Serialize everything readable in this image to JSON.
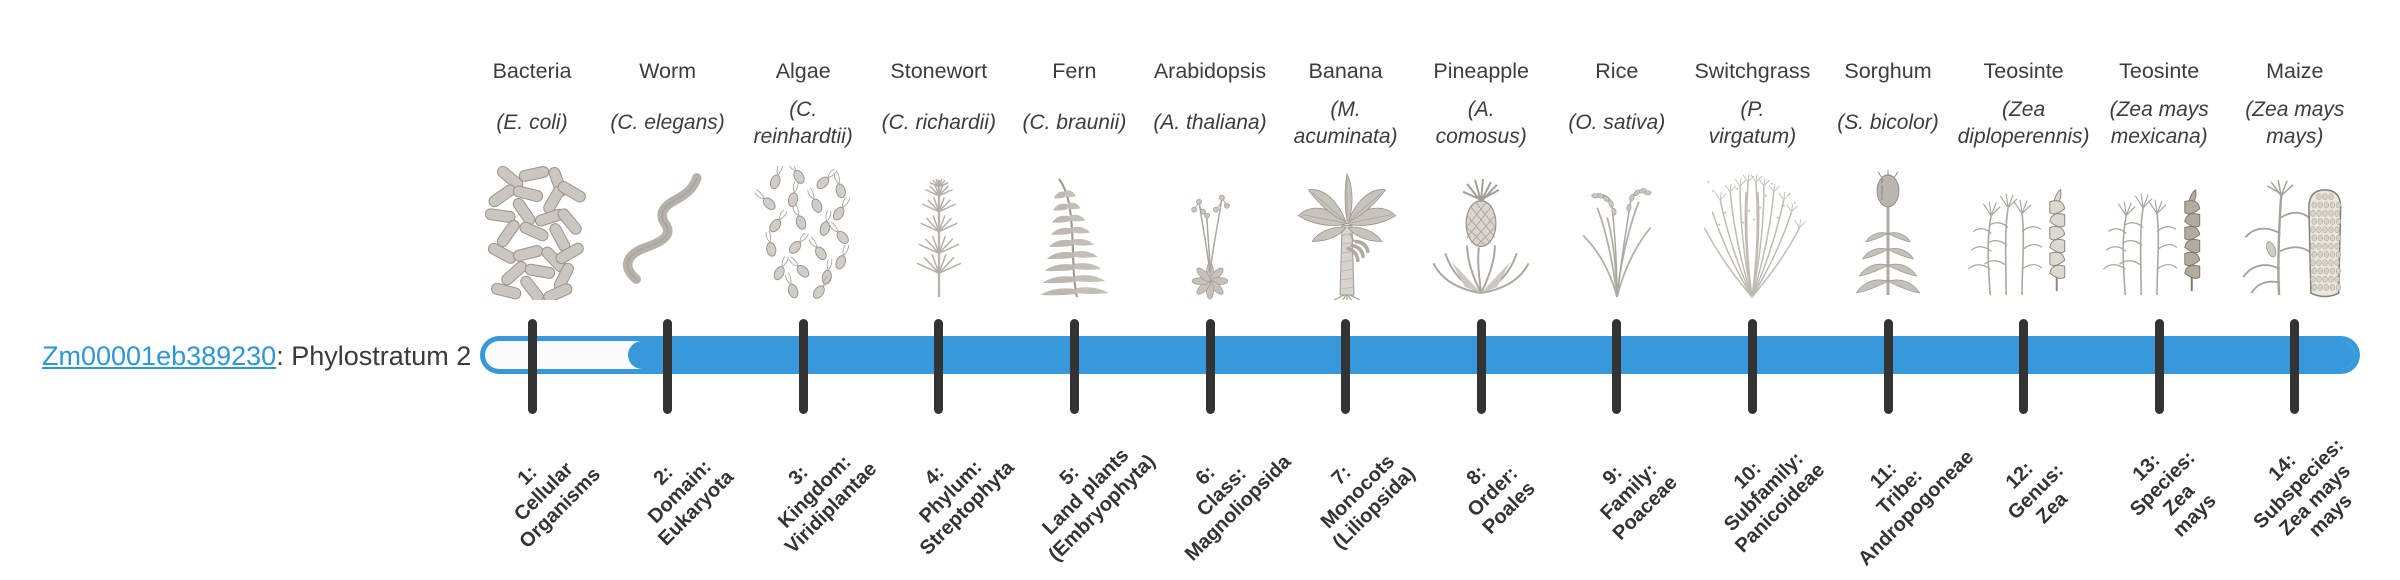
{
  "gene": {
    "id": "Zm00001eb389230",
    "suffix": ": Phylostratum 2",
    "phylostratum": 2
  },
  "bar": {
    "fill_color": "#3798db",
    "track_color": "#fbfbfb",
    "tick_color": "#333333",
    "filled_from_stratum": 2,
    "filled_to_stratum": 14
  },
  "link_color": "#2e96d8",
  "organisms": [
    {
      "common": "Bacteria",
      "scientific": "(E. coli)",
      "icon": "bacteria-icon",
      "stratum": "1:\nCellular\nOrganisms"
    },
    {
      "common": "Worm",
      "scientific": "(C. elegans)",
      "icon": "worm-icon",
      "stratum": "2:\nDomain:\nEukaryota"
    },
    {
      "common": "Algae",
      "scientific": "(C.\nreinhardtii)",
      "icon": "algae-icon",
      "stratum": "3:\nKingdom:\nViridiplantae"
    },
    {
      "common": "Stonewort",
      "scientific": "(C. richardii)",
      "icon": "stonewort-icon",
      "stratum": "4:\nPhylum:\nStreptophyta"
    },
    {
      "common": "Fern",
      "scientific": "(C. braunii)",
      "icon": "fern-icon",
      "stratum": "5:\nLand plants\n(Embryophyta)"
    },
    {
      "common": "Arabidopsis",
      "scientific": "(A. thaliana)",
      "icon": "arabidopsis-icon",
      "stratum": "6:\nClass:\nMagnoliopsida"
    },
    {
      "common": "Banana",
      "scientific": "(M.\nacuminata)",
      "icon": "banana-icon",
      "stratum": "7:\nMonocots\n(Liliopsida)"
    },
    {
      "common": "Pineapple",
      "scientific": "(A.\ncomosus)",
      "icon": "pineapple-icon",
      "stratum": "8:\nOrder:\nPoales"
    },
    {
      "common": "Rice",
      "scientific": "(O. sativa)",
      "icon": "rice-icon",
      "stratum": "9:\nFamily:\nPoaceae"
    },
    {
      "common": "Switchgrass",
      "scientific": "(P.\nvirgatum)",
      "icon": "switchgrass-icon",
      "stratum": "10:\nSubfamily:\nPanicoideae"
    },
    {
      "common": "Sorghum",
      "scientific": "(S. bicolor)",
      "icon": "sorghum-icon",
      "stratum": "11:\nTribe:\nAndropogoneae"
    },
    {
      "common": "Teosinte",
      "scientific": "(Zea\ndiploperennis)",
      "icon": "teosinte-icon",
      "stratum": "12:\nGenus:\nZea"
    },
    {
      "common": "Teosinte",
      "scientific": "(Zea mays\nmexicana)",
      "icon": "teosinte-dark-icon",
      "stratum": "13:\nSpecies:\nZea\nmays"
    },
    {
      "common": "Maize",
      "scientific": "(Zea mays\nmays)",
      "icon": "maize-icon",
      "stratum": "14:\nSubspecies:\nZea mays\nmays"
    }
  ],
  "chart_data": {
    "type": "bar",
    "orientation": "horizontal",
    "title": "",
    "xlabel": "",
    "ylabel": "",
    "grid": false,
    "legend": null,
    "rows": [
      {
        "gene": "Zm00001eb389230",
        "phylostratum": 2,
        "bar_spans_strata": [
          2,
          14
        ],
        "unfilled_strata": [
          1
        ]
      }
    ],
    "x_categories": [
      "1: Cellular Organisms",
      "2: Domain: Eukaryota",
      "3: Kingdom: Viridiplantae",
      "4: Phylum: Streptophyta",
      "5: Land plants (Embryophyta)",
      "6: Class: Magnoliopsida",
      "7: Monocots (Liliopsida)",
      "8: Order: Poales",
      "9: Family: Poaceae",
      "10: Subfamily: Panicoideae",
      "11: Tribe: Andropogoneae",
      "12: Genus: Zea",
      "13: Species: Zea mays",
      "14: Subspecies: Zea mays mays"
    ],
    "x_tick_organisms": [
      "Bacteria (E. coli)",
      "Worm (C. elegans)",
      "Algae (C. reinhardtii)",
      "Stonewort (C. richardii)",
      "Fern (C. braunii)",
      "Arabidopsis (A. thaliana)",
      "Banana (M. acuminata)",
      "Pineapple (A. comosus)",
      "Rice (O. sativa)",
      "Switchgrass (P. virgatum)",
      "Sorghum (S. bicolor)",
      "Teosinte (Zea diploperennis)",
      "Teosinte (Zea mays mexicana)",
      "Maize (Zea mays mays)"
    ]
  }
}
